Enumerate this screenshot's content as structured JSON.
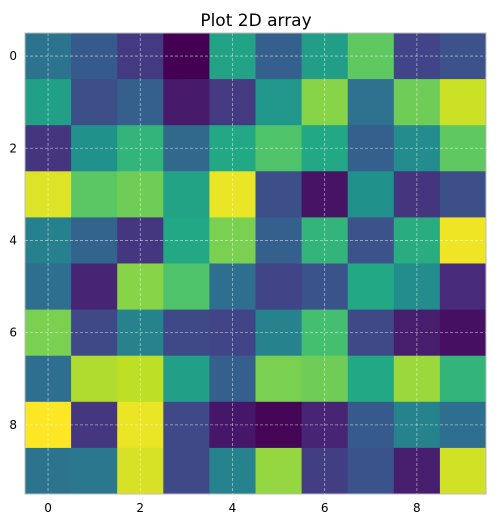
{
  "chart_data": {
    "type": "heatmap",
    "title": "Plot 2D array",
    "xlabel": "",
    "ylabel": "",
    "colormap": "viridis",
    "vmin": 0,
    "vmax": 1,
    "grid": true,
    "xlim": [
      -0.5,
      9.5
    ],
    "ylim": [
      9.5,
      -0.5
    ],
    "x_ticks": [
      0,
      2,
      4,
      6,
      8
    ],
    "y_ticks": [
      0,
      2,
      4,
      6,
      8
    ],
    "x_tick_labels": [
      "0",
      "2",
      "4",
      "6",
      "8"
    ],
    "y_tick_labels": [
      "0",
      "2",
      "4",
      "6",
      "8"
    ],
    "values": [
      [
        0.38,
        0.28,
        0.17,
        0.0,
        0.58,
        0.3,
        0.55,
        0.75,
        0.2,
        0.25
      ],
      [
        0.56,
        0.24,
        0.3,
        0.07,
        0.17,
        0.52,
        0.82,
        0.37,
        0.78,
        0.92
      ],
      [
        0.15,
        0.5,
        0.65,
        0.34,
        0.6,
        0.72,
        0.6,
        0.3,
        0.48,
        0.75
      ],
      [
        0.95,
        0.74,
        0.78,
        0.58,
        0.97,
        0.24,
        0.05,
        0.5,
        0.15,
        0.24
      ],
      [
        0.43,
        0.32,
        0.16,
        0.6,
        0.8,
        0.3,
        0.65,
        0.25,
        0.62,
        0.98
      ],
      [
        0.36,
        0.1,
        0.82,
        0.72,
        0.36,
        0.2,
        0.26,
        0.6,
        0.48,
        0.12
      ],
      [
        0.8,
        0.22,
        0.44,
        0.22,
        0.2,
        0.44,
        0.7,
        0.22,
        0.08,
        0.04
      ],
      [
        0.36,
        0.88,
        0.9,
        0.56,
        0.3,
        0.8,
        0.78,
        0.6,
        0.85,
        0.65
      ],
      [
        1.0,
        0.16,
        0.97,
        0.22,
        0.06,
        0.01,
        0.1,
        0.28,
        0.44,
        0.36
      ],
      [
        0.38,
        0.4,
        0.94,
        0.22,
        0.44,
        0.84,
        0.18,
        0.26,
        0.08,
        0.93
      ]
    ]
  }
}
